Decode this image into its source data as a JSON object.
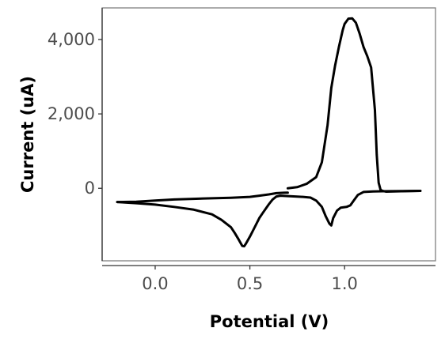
{
  "chart_data": {
    "type": "line",
    "title": "",
    "xlabel": "Potential (V)",
    "ylabel": "Current (uA)",
    "xlim": [
      -0.28,
      1.48
    ],
    "ylim": [
      -1950,
      4850
    ],
    "x_ticks": [
      0.0,
      0.5,
      1.0
    ],
    "x_tick_labels": [
      "0.0",
      "0.5",
      "1.0"
    ],
    "y_ticks": [
      0,
      2000,
      4000
    ],
    "y_tick_labels": [
      "0",
      "2,000",
      "4,000"
    ],
    "grid": false,
    "legend": "none",
    "colors": {
      "line": "#000000",
      "panel_border": "#7f7f7f",
      "tick_label": "#4d4d4d"
    },
    "series": [
      {
        "x": [
          0.7,
          0.75,
          0.8,
          0.85,
          0.88,
          0.91,
          0.93,
          0.95,
          0.97,
          0.99,
          1.0,
          1.02,
          1.04,
          1.06,
          1.08,
          1.1,
          1.12,
          1.14,
          1.16,
          1.17,
          1.18,
          1.19,
          1.2,
          1.22,
          1.3,
          1.4
        ],
        "y": [
          0,
          30,
          120,
          300,
          700,
          1700,
          2700,
          3300,
          3800,
          4250,
          4420,
          4560,
          4570,
          4450,
          4150,
          3800,
          3550,
          3250,
          2100,
          900,
          150,
          -40,
          -70,
          -90,
          -80,
          -70
        ]
      },
      {
        "x": [
          1.4,
          1.3,
          1.2,
          1.15,
          1.1,
          1.07,
          1.05,
          1.03,
          1.01,
          0.98,
          0.96,
          0.94,
          0.93,
          0.92,
          0.9,
          0.88,
          0.85,
          0.82,
          0.78,
          0.74,
          0.7,
          0.66,
          0.64,
          0.62,
          0.6,
          0.57,
          0.55,
          0.52,
          0.5,
          0.48,
          0.47,
          0.46,
          0.44,
          0.42,
          0.4,
          0.35,
          0.3,
          0.2,
          0.1,
          0.0,
          -0.1,
          -0.2
        ],
        "y": [
          -70,
          -75,
          -80,
          -85,
          -100,
          -180,
          -320,
          -460,
          -500,
          -520,
          -600,
          -800,
          -1000,
          -950,
          -750,
          -500,
          -330,
          -250,
          -230,
          -220,
          -210,
          -200,
          -220,
          -300,
          -430,
          -650,
          -800,
          -1100,
          -1300,
          -1480,
          -1560,
          -1550,
          -1370,
          -1200,
          -1050,
          -850,
          -700,
          -570,
          -500,
          -440,
          -400,
          -370
        ]
      },
      {
        "x": [
          -0.2,
          -0.1,
          0.0,
          0.1,
          0.2,
          0.3,
          0.4,
          0.5,
          0.55,
          0.6,
          0.64,
          0.68,
          0.7
        ],
        "y": [
          -370,
          -360,
          -330,
          -300,
          -285,
          -270,
          -255,
          -230,
          -200,
          -165,
          -130,
          -120,
          -118
        ]
      }
    ]
  }
}
